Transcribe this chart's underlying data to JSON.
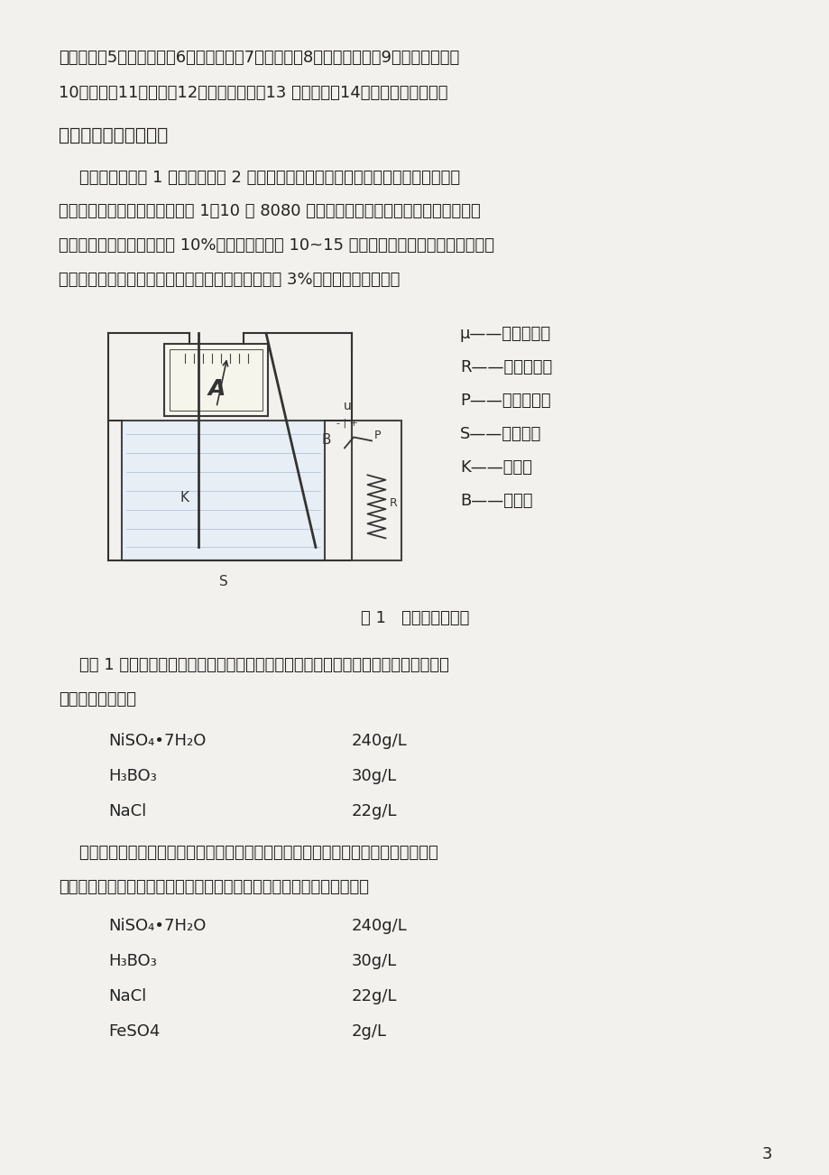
{
  "bg_color": "#f2f1ed",
  "text_color": "#222222",
  "line1": "闸刀开关；5、滑线电组。6、直流电源；7、毫伏表；8、直流电压表；9、恒温水浴槽；",
  "line2": "10、直尺；11、滤纸；12、面板夹具等；13 镀镍溶液；14、绝缘导线若干等。",
  "section_title": "四、实验步骤及结果：",
  "para1_lines": [
    "    实验用装置按图 1 线路接好，将 2 块已划出面积的低碳钢阴极编好号，然后用砂纸擦",
    "去金属表面的锈等脏物。再放入 1：10 的 8080 金属洗涤液中进行除油清洗。用水洗净试",
    "样或阴极后，在室温下浸入 10%硫酸溶液中侵蚀 10~15 分钟；然后在水龙头下用自来水仔",
    "细冲洗，再用滤纸吸去样品表面上的水分把试样浸入 3%硫酸钠溶液中备用。"
  ],
  "legend_lines": [
    "μ——直流电源；",
    "R——滑线电阻；",
    "P——闸刀开关；",
    "S——电波槽；",
    "K——阴极；",
    "B——阳极。"
  ],
  "fig_caption": "图 1   实验装置示意图",
  "para2_lines": [
    "    按图 1 连接好线路，请老师检查后放入试样。铁样品作阴极，镍板作阳极按以下配方",
    "及工艺进行实验。"
  ],
  "formula1": [
    [
      "NiSO₄•7H₂O",
      "240g/L"
    ],
    [
      "H₃BO₃",
      "30g/L"
    ],
    [
      "NaCl",
      "22g/L"
    ]
  ],
  "para3_lines": [
    "    每一批同学分六组进行实验、然后再做镀液中含铁杂质对镀层质量的影响的实验。电",
    "镀电路接线图及电镀装置与其前面工艺完全相同，只是电镀液配方如下："
  ],
  "formula2": [
    [
      "NiSO₄•7H₂O",
      "240g/L"
    ],
    [
      "H₃BO₃",
      "30g/L"
    ],
    [
      "NaCl",
      "22g/L"
    ],
    [
      "FeSO4",
      "2g/L"
    ]
  ],
  "page_number": "3"
}
